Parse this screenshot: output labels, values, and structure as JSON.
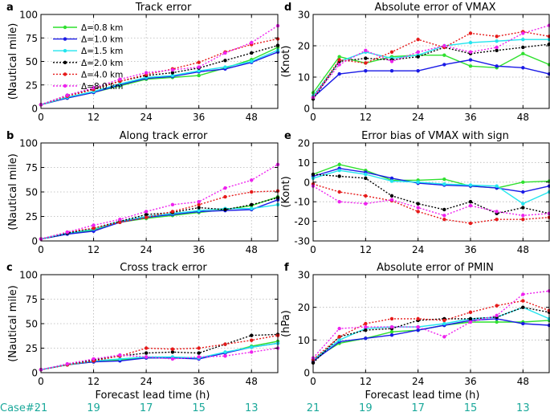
{
  "figure": {
    "xlabel": "Forecast lead time (h)",
    "case_label": "Case#:",
    "case_ticks": [
      0,
      12,
      24,
      36,
      48
    ],
    "case_counts": [
      "21",
      "19",
      "17",
      "15",
      "13"
    ],
    "case_color": "#1aa89a"
  },
  "legend": {
    "entries": [
      {
        "label": "Δ=0.8 km",
        "color": "#2fe02f",
        "dash": false
      },
      {
        "label": "Δ=1.0 km",
        "color": "#1a1ae6",
        "dash": false
      },
      {
        "label": "Δ=1.5 km",
        "color": "#22e5ee",
        "dash": false
      },
      {
        "label": "Δ=2.0 km",
        "color": "#000000",
        "dash": true
      },
      {
        "label": "Δ=4.0 km",
        "color": "#e61a1a",
        "dash": true
      },
      {
        "label": "Δ=8.0 km",
        "color": "#ee22ee",
        "dash": true
      }
    ]
  },
  "chart_data": [
    {
      "id": "a",
      "panel_label": "a",
      "type": "line",
      "title": "Track error",
      "ylabel": "(Nautical mile)",
      "xlim": [
        0,
        54
      ],
      "ylim": [
        0,
        100
      ],
      "xticks": [
        0,
        12,
        24,
        36,
        48
      ],
      "yticks": [
        0,
        25,
        50,
        75,
        100
      ],
      "x": [
        0,
        6,
        12,
        18,
        24,
        30,
        36,
        42,
        48,
        54
      ],
      "series": [
        {
          "name": "Δ=0.8 km",
          "values": [
            4,
            11,
            17,
            24,
            31,
            33,
            35,
            43,
            52,
            65
          ]
        },
        {
          "name": "Δ=1.0 km",
          "values": [
            4,
            11,
            17,
            25,
            32,
            34,
            39,
            42,
            49,
            60
          ]
        },
        {
          "name": "Δ=1.5 km",
          "values": [
            4,
            12,
            18,
            26,
            33,
            35,
            40,
            44,
            50,
            62
          ]
        },
        {
          "name": "Δ=2.0 km",
          "values": [
            4,
            14,
            21,
            29,
            35,
            38,
            43,
            51,
            59,
            67
          ]
        },
        {
          "name": "Δ=4.0 km",
          "values": [
            4,
            13,
            20,
            29,
            36,
            42,
            49,
            60,
            68,
            74
          ]
        },
        {
          "name": "Δ=8.0 km",
          "values": [
            4,
            14,
            22,
            31,
            38,
            41,
            44,
            59,
            70,
            88
          ]
        }
      ]
    },
    {
      "id": "d",
      "panel_label": "d",
      "type": "line",
      "title": "Absolute error of VMAX",
      "ylabel": "(Knot)",
      "xlim": [
        0,
        54
      ],
      "ylim": [
        0,
        30
      ],
      "xticks": [
        0,
        12,
        24,
        36,
        48
      ],
      "yticks": [
        0,
        10,
        20,
        30
      ],
      "x": [
        0,
        6,
        12,
        18,
        24,
        30,
        36,
        42,
        48,
        54
      ],
      "series": [
        {
          "name": "Δ=0.8 km",
          "values": [
            5,
            16.5,
            14.5,
            16.5,
            17,
            17,
            13.5,
            13,
            17.5,
            14
          ]
        },
        {
          "name": "Δ=1.0 km",
          "values": [
            3.5,
            11,
            12,
            12,
            12,
            14,
            15.5,
            13.5,
            13,
            11
          ]
        },
        {
          "name": "Δ=1.5 km",
          "values": [
            4,
            15,
            18,
            16,
            17,
            20,
            21,
            21.5,
            22,
            22
          ]
        },
        {
          "name": "Δ=2.0 km",
          "values": [
            3,
            15,
            16,
            15.5,
            16.5,
            19.5,
            17.5,
            18.5,
            19.5,
            20.5
          ]
        },
        {
          "name": "Δ=4.0 km",
          "values": [
            3.5,
            15.5,
            14.5,
            18,
            22,
            19.5,
            24,
            23,
            24.5,
            23
          ]
        },
        {
          "name": "Δ=8.0 km",
          "values": [
            3.5,
            14,
            18.5,
            15,
            18,
            20,
            18,
            19.5,
            24,
            26.5
          ]
        }
      ]
    },
    {
      "id": "b",
      "panel_label": "b",
      "type": "line",
      "title": "Along track error",
      "ylabel": "(Nautical mile)",
      "xlim": [
        0,
        54
      ],
      "ylim": [
        0,
        100
      ],
      "xticks": [
        0,
        12,
        24,
        36,
        48
      ],
      "yticks": [
        0,
        25,
        50,
        75,
        100
      ],
      "x": [
        0,
        6,
        12,
        18,
        24,
        30,
        36,
        42,
        48,
        54
      ],
      "series": [
        {
          "name": "Δ=0.8 km",
          "values": [
            2,
            7,
            11,
            19,
            23,
            26,
            29,
            32,
            36,
            45
          ]
        },
        {
          "name": "Δ=1.0 km",
          "values": [
            2,
            7,
            10,
            19,
            24,
            27,
            30,
            31,
            32,
            42
          ]
        },
        {
          "name": "Δ=1.5 km",
          "values": [
            2,
            8,
            12,
            20,
            25,
            28,
            31,
            33,
            33,
            37
          ]
        },
        {
          "name": "Δ=2.0 km",
          "values": [
            2,
            8,
            13,
            20,
            27,
            29,
            34,
            32,
            37,
            44
          ]
        },
        {
          "name": "Δ=4.0 km",
          "values": [
            2,
            9,
            13,
            19,
            24,
            30,
            37,
            45,
            50,
            51
          ]
        },
        {
          "name": "Δ=8.0 km",
          "values": [
            2,
            9,
            16,
            22,
            30,
            37,
            40,
            54,
            62,
            78
          ]
        }
      ]
    },
    {
      "id": "e",
      "panel_label": "e",
      "type": "line",
      "title": "Error bias of VMAX with sign",
      "ylabel": "(Kont)",
      "xlim": [
        0,
        54
      ],
      "ylim": [
        -30,
        20
      ],
      "xticks": [
        0,
        12,
        24,
        36,
        48
      ],
      "yticks": [
        -30,
        -20,
        -10,
        0,
        10,
        20
      ],
      "x": [
        0,
        6,
        12,
        18,
        24,
        30,
        36,
        42,
        48,
        54
      ],
      "series": [
        {
          "name": "Δ=0.8 km",
          "values": [
            4,
            9,
            6,
            1,
            1,
            1.5,
            -2,
            -3,
            0,
            0.5
          ]
        },
        {
          "name": "Δ=1.0 km",
          "values": [
            3,
            7,
            5,
            2,
            -0.5,
            -1.5,
            -2,
            -3,
            -5,
            -2
          ]
        },
        {
          "name": "Δ=1.5 km",
          "values": [
            2,
            6,
            4,
            0.5,
            0,
            -1,
            -1.5,
            -2,
            -11,
            -5
          ]
        },
        {
          "name": "Δ=2.0 km",
          "values": [
            4,
            3,
            2,
            -7,
            -11,
            -14,
            -10,
            -16,
            -13,
            -16
          ]
        },
        {
          "name": "Δ=4.0 km",
          "values": [
            -1,
            -5,
            -7,
            -9.5,
            -15,
            -19,
            -21,
            -19,
            -19,
            -18
          ]
        },
        {
          "name": "Δ=8.0 km",
          "values": [
            -2,
            -10,
            -11,
            -9,
            -13,
            -17,
            -12,
            -15,
            -17,
            -16
          ]
        }
      ]
    },
    {
      "id": "c",
      "panel_label": "c",
      "type": "line",
      "title": "Cross track error",
      "ylabel": "(Nautical mile)",
      "xlim": [
        0,
        54
      ],
      "ylim": [
        0,
        100
      ],
      "xticks": [
        0,
        12,
        24,
        36,
        48
      ],
      "yticks": [
        0,
        25,
        50,
        75,
        100
      ],
      "x": [
        0,
        6,
        12,
        18,
        24,
        30,
        36,
        42,
        48,
        54
      ],
      "series": [
        {
          "name": "Δ=0.8 km",
          "values": [
            3,
            8,
            11,
            13,
            15,
            15,
            15,
            20,
            27,
            32
          ]
        },
        {
          "name": "Δ=1.0 km",
          "values": [
            3,
            8,
            11,
            12,
            15,
            15,
            14,
            20,
            26,
            30
          ]
        },
        {
          "name": "Δ=1.5 km",
          "values": [
            3,
            8,
            12,
            14,
            16,
            16,
            15,
            21,
            26,
            30
          ]
        },
        {
          "name": "Δ=2.0 km",
          "values": [
            3,
            8,
            13,
            17,
            20,
            21,
            20,
            29,
            38,
            39
          ]
        },
        {
          "name": "Δ=4.0 km",
          "values": [
            3,
            8,
            12,
            17,
            25,
            24,
            25,
            29,
            33,
            38
          ]
        },
        {
          "name": "Δ=8.0 km",
          "values": [
            3,
            9,
            14,
            18,
            16,
            14,
            16,
            17,
            21,
            25
          ]
        }
      ]
    },
    {
      "id": "f",
      "panel_label": "f",
      "type": "line",
      "title": "Absolute error of PMIN",
      "ylabel": "(hPa)",
      "xlim": [
        0,
        54
      ],
      "ylim": [
        0,
        30
      ],
      "xticks": [
        0,
        12,
        24,
        36,
        48
      ],
      "yticks": [
        0,
        10,
        20,
        30
      ],
      "x": [
        0,
        6,
        12,
        18,
        24,
        30,
        36,
        42,
        48,
        54
      ],
      "series": [
        {
          "name": "Δ=0.8 km",
          "values": [
            4,
            9,
            10.5,
            12.5,
            13,
            14.5,
            15.5,
            15.5,
            15.5,
            16
          ]
        },
        {
          "name": "Δ=1.0 km",
          "values": [
            3.5,
            9.5,
            10.5,
            11.5,
            13,
            14.5,
            16,
            16.5,
            15,
            14.5
          ]
        },
        {
          "name": "Δ=1.5 km",
          "values": [
            4,
            10,
            13.5,
            14,
            14,
            15,
            16.5,
            17,
            20,
            16.5
          ]
        },
        {
          "name": "Δ=2.0 km",
          "values": [
            3,
            11,
            13,
            13.5,
            16,
            16.5,
            16.5,
            17,
            20,
            18.5
          ]
        },
        {
          "name": "Δ=4.0 km",
          "values": [
            4,
            11,
            15,
            16.5,
            16.5,
            16,
            18.5,
            20.5,
            22,
            19
          ]
        },
        {
          "name": "Δ=8.0 km",
          "values": [
            4.5,
            13.5,
            14,
            14,
            14,
            11,
            15.5,
            17.5,
            24,
            25
          ]
        }
      ]
    }
  ]
}
